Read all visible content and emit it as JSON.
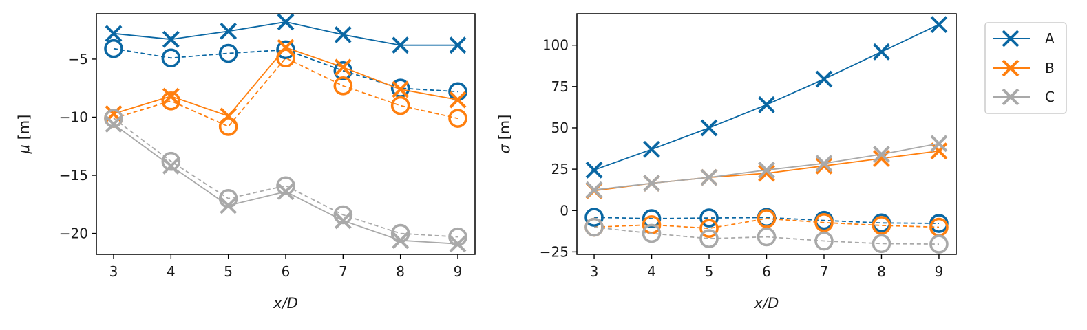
{
  "chart_data": [
    {
      "type": "line",
      "xlabel": "x/D",
      "ylabel": "μ [m]",
      "xlim": [
        2.7,
        9.3
      ],
      "ylim": [
        -21.8,
        -1.1
      ],
      "xticks": [
        3,
        4,
        5,
        6,
        7,
        8,
        9
      ],
      "yticks": [
        -5,
        -10,
        -15,
        -20
      ],
      "x": [
        3,
        4,
        5,
        6,
        7,
        8,
        9
      ],
      "series": [
        {
          "name": "A",
          "style": "solid",
          "marker": "x",
          "color": "#0a67a3",
          "values": [
            -2.8,
            -3.3,
            -2.6,
            -1.8,
            -2.9,
            -3.8,
            -3.8
          ]
        },
        {
          "name": "A",
          "style": "dashed",
          "marker": "o",
          "color": "#0a67a3",
          "values": [
            -4.1,
            -4.9,
            -4.5,
            -4.2,
            -6.0,
            -7.5,
            -7.8
          ]
        },
        {
          "name": "B",
          "style": "solid",
          "marker": "x",
          "color": "#ff7f0e",
          "values": [
            -9.7,
            -8.2,
            -9.9,
            -4.0,
            -5.7,
            -7.6,
            -8.5
          ]
        },
        {
          "name": "B",
          "style": "dashed",
          "marker": "o",
          "color": "#ff7f0e",
          "values": [
            -10.1,
            -8.6,
            -10.8,
            -4.9,
            -7.3,
            -9.0,
            -10.1
          ]
        },
        {
          "name": "C",
          "style": "solid",
          "marker": "x",
          "color": "#a9a9a9",
          "values": [
            -10.6,
            -14.2,
            -17.6,
            -16.4,
            -18.9,
            -20.6,
            -20.9
          ]
        },
        {
          "name": "C",
          "style": "dashed",
          "marker": "o",
          "color": "#a9a9a9",
          "values": [
            -10.1,
            -13.8,
            -17.0,
            -15.9,
            -18.4,
            -20.0,
            -20.3
          ]
        }
      ]
    },
    {
      "type": "line",
      "xlabel": "x/D",
      "ylabel": "σ [m]",
      "xlim": [
        2.7,
        9.3
      ],
      "ylim": [
        -26.5,
        119
      ],
      "xticks": [
        3,
        4,
        5,
        6,
        7,
        8,
        9
      ],
      "yticks": [
        100,
        75,
        50,
        25,
        0,
        -25
      ],
      "x": [
        3,
        4,
        5,
        6,
        7,
        8,
        9
      ],
      "series": [
        {
          "name": "A",
          "style": "solid",
          "marker": "x",
          "color": "#0a67a3",
          "values": [
            24.5,
            37.0,
            50.0,
            64.0,
            79.5,
            96.0,
            112.5
          ]
        },
        {
          "name": "A",
          "style": "dashed",
          "marker": "o",
          "color": "#0a67a3",
          "values": [
            -4.1,
            -4.9,
            -4.5,
            -4.2,
            -6.0,
            -7.5,
            -7.8
          ]
        },
        {
          "name": "B",
          "style": "solid",
          "marker": "x",
          "color": "#ff7f0e",
          "values": [
            12.0,
            16.5,
            20.0,
            22.5,
            27.0,
            31.5,
            36.0
          ]
        },
        {
          "name": "B",
          "style": "dashed",
          "marker": "o",
          "color": "#ff7f0e",
          "values": [
            -10.1,
            -8.6,
            -10.8,
            -4.9,
            -7.3,
            -9.0,
            -10.1
          ]
        },
        {
          "name": "C",
          "style": "solid",
          "marker": "x",
          "color": "#a9a9a9",
          "values": [
            12.5,
            16.5,
            20.0,
            24.5,
            28.5,
            34.0,
            40.5
          ]
        },
        {
          "name": "C",
          "style": "dashed",
          "marker": "o",
          "color": "#a9a9a9",
          "values": [
            -10.1,
            -13.8,
            -17.0,
            -15.9,
            -18.4,
            -20.0,
            -20.3
          ]
        }
      ]
    }
  ],
  "legend": {
    "placement": "outside-right",
    "items": [
      {
        "label": "A",
        "color": "#0a67a3"
      },
      {
        "label": "B",
        "color": "#ff7f0e"
      },
      {
        "label": "C",
        "color": "#a9a9a9"
      }
    ]
  }
}
